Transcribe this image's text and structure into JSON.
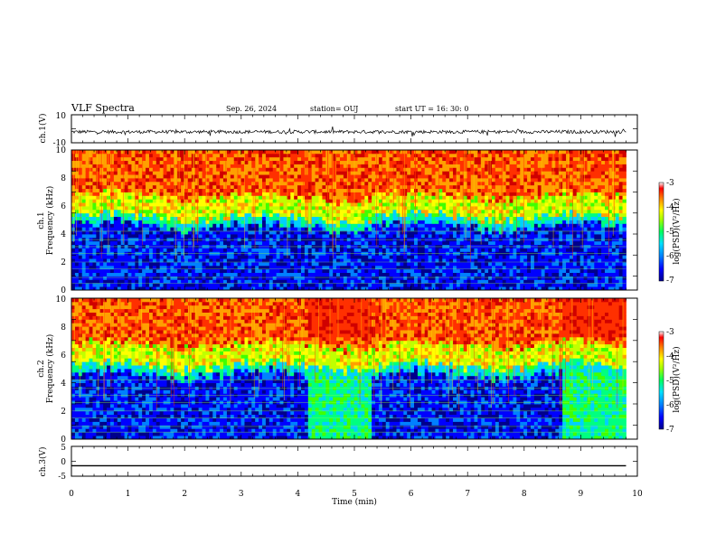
{
  "header": {
    "title": "VLF Spectra",
    "date": "Sep. 26, 2024",
    "station": "station= OUJ",
    "start_ut": "start  UT =   16: 30: 0"
  },
  "chart_data": [
    {
      "type": "line",
      "panel": "ch.1 waveform",
      "ylabel": "ch.1(V)",
      "ylim": [
        -10,
        10
      ],
      "ytick_labels": [
        "10",
        "-10"
      ],
      "xlim": [
        0,
        10
      ],
      "baseline": -2.2,
      "noise_amplitude": 1.2,
      "data_end_min": 9.8
    },
    {
      "type": "heatmap",
      "panel": "ch.1 spectrogram",
      "ylabel": "ch.1\nFrequency  (kHz)",
      "ylim": [
        0,
        10
      ],
      "ytick_labels": [
        "0",
        "2",
        "4",
        "6",
        "8",
        "10"
      ],
      "xlim": [
        0,
        10
      ],
      "data_end_min": 9.8,
      "colorbar": {
        "label": "log(PSD)(V²/Hz)",
        "range": [
          -7,
          -3
        ],
        "tick_labels": [
          "-3",
          "-4",
          "-5",
          "-6",
          "-7"
        ]
      },
      "band_edges_khz": [
        {
          "t": 0,
          "khz": 5.2
        },
        {
          "t": 2,
          "khz": 5.3
        },
        {
          "t": 4,
          "khz": 5.4
        },
        {
          "t": 6,
          "khz": 5.4
        },
        {
          "t": 8,
          "khz": 5.2
        },
        {
          "t": 9.8,
          "khz": 5.3
        }
      ]
    },
    {
      "type": "heatmap",
      "panel": "ch.2 spectrogram",
      "ylabel": "ch.2\nFrequency  (kHz)",
      "ylim": [
        0,
        10
      ],
      "ytick_labels": [
        "0",
        "2",
        "4",
        "6",
        "8",
        "10"
      ],
      "xlim": [
        0,
        10
      ],
      "data_end_min": 9.8,
      "colorbar": {
        "label": "log(PSD)(V²/Hz)",
        "range": [
          -7,
          -3
        ],
        "tick_labels": [
          "-3",
          "-4",
          "-5",
          "-6",
          "-7"
        ]
      },
      "intense_bursts": [
        {
          "t0": 4.2,
          "t1": 5.3,
          "f0_khz": 7.3,
          "f1_khz": 10
        },
        {
          "t0": 8.7,
          "t1": 9.8,
          "f0_khz": 7.3,
          "f1_khz": 10
        }
      ]
    },
    {
      "type": "line",
      "panel": "ch.3 waveform",
      "ylabel": "ch.3(V)",
      "ylim": [
        -5,
        5
      ],
      "ytick_labels": [
        "5",
        "0",
        "-5"
      ],
      "xlim": [
        0,
        10
      ],
      "xtick_labels": [
        "0",
        "1",
        "2",
        "3",
        "4",
        "5",
        "6",
        "7",
        "8",
        "9",
        "10"
      ],
      "xlabel": "Time  (min)",
      "constant_value": -1.5,
      "data_end_min": 9.8
    }
  ],
  "colors": {
    "colormap": [
      "#00008b",
      "#0000ff",
      "#0080ff",
      "#00d0ff",
      "#00ff80",
      "#40ff00",
      "#c0ff00",
      "#ffff00",
      "#ffa000",
      "#ff3000",
      "#d00000"
    ],
    "axis": "#000000"
  }
}
